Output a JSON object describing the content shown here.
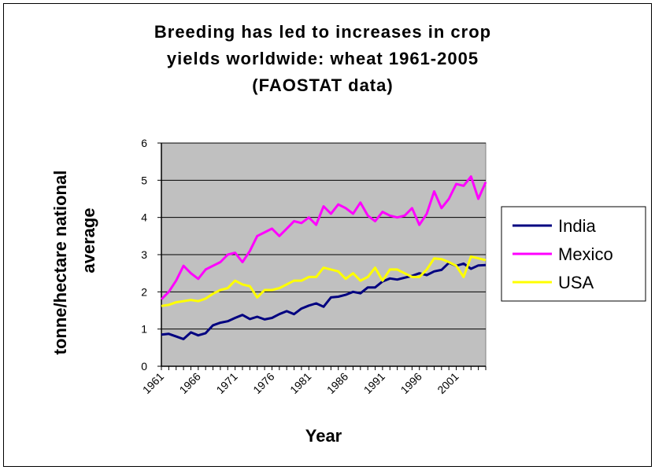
{
  "chart_data": {
    "type": "line",
    "title_lines": [
      "Breeding has led to increases in crop",
      "yields worldwide: wheat 1961-2005",
      "(FAOSTAT data)"
    ],
    "xlabel": "Year",
    "ylabel_lines": [
      "tonne/hectare national",
      "average"
    ],
    "ylim": [
      0,
      6
    ],
    "yticks": [
      "0",
      "1",
      "2",
      "3",
      "4",
      "5",
      "6"
    ],
    "xlim": [
      1961,
      2005
    ],
    "xticks": [
      "1961",
      "1966",
      "1971",
      "1976",
      "1981",
      "1986",
      "1991",
      "1996",
      "2001"
    ],
    "grid": "horizontal",
    "legend_position": "right",
    "x": [
      1961,
      1962,
      1963,
      1964,
      1965,
      1966,
      1967,
      1968,
      1969,
      1970,
      1971,
      1972,
      1973,
      1974,
      1975,
      1976,
      1977,
      1978,
      1979,
      1980,
      1981,
      1982,
      1983,
      1984,
      1985,
      1986,
      1987,
      1988,
      1989,
      1990,
      1991,
      1992,
      1993,
      1994,
      1995,
      1996,
      1997,
      1998,
      1999,
      2000,
      2001,
      2002,
      2003,
      2004,
      2005
    ],
    "series": [
      {
        "name": "India",
        "color": "#000080",
        "values": [
          0.85,
          0.87,
          0.8,
          0.73,
          0.91,
          0.83,
          0.89,
          1.1,
          1.17,
          1.21,
          1.3,
          1.38,
          1.27,
          1.33,
          1.26,
          1.3,
          1.4,
          1.48,
          1.4,
          1.55,
          1.63,
          1.69,
          1.6,
          1.85,
          1.87,
          1.92,
          2.0,
          1.96,
          2.12,
          2.12,
          2.28,
          2.36,
          2.33,
          2.38,
          2.43,
          2.5,
          2.45,
          2.55,
          2.59,
          2.78,
          2.7,
          2.76,
          2.62,
          2.71,
          2.72
        ]
      },
      {
        "name": "Mexico",
        "color": "#FF00FF",
        "values": [
          1.8,
          2.0,
          2.3,
          2.7,
          2.5,
          2.35,
          2.6,
          2.7,
          2.8,
          3.0,
          3.05,
          2.8,
          3.1,
          3.5,
          3.6,
          3.7,
          3.5,
          3.7,
          3.9,
          3.85,
          4.0,
          3.8,
          4.3,
          4.1,
          4.35,
          4.25,
          4.1,
          4.4,
          4.05,
          3.9,
          4.15,
          4.05,
          4.0,
          4.05,
          4.25,
          3.8,
          4.1,
          4.7,
          4.25,
          4.5,
          4.9,
          4.85,
          5.1,
          4.5,
          4.95
        ]
      },
      {
        "name": "USA",
        "color": "#FFFF00",
        "values": [
          1.62,
          1.65,
          1.72,
          1.75,
          1.78,
          1.75,
          1.82,
          1.95,
          2.05,
          2.1,
          2.3,
          2.2,
          2.15,
          1.85,
          2.05,
          2.05,
          2.1,
          2.2,
          2.3,
          2.3,
          2.4,
          2.4,
          2.65,
          2.6,
          2.55,
          2.35,
          2.5,
          2.3,
          2.4,
          2.65,
          2.3,
          2.6,
          2.6,
          2.5,
          2.4,
          2.4,
          2.6,
          2.9,
          2.88,
          2.8,
          2.7,
          2.4,
          2.95,
          2.9,
          2.85
        ]
      }
    ]
  }
}
